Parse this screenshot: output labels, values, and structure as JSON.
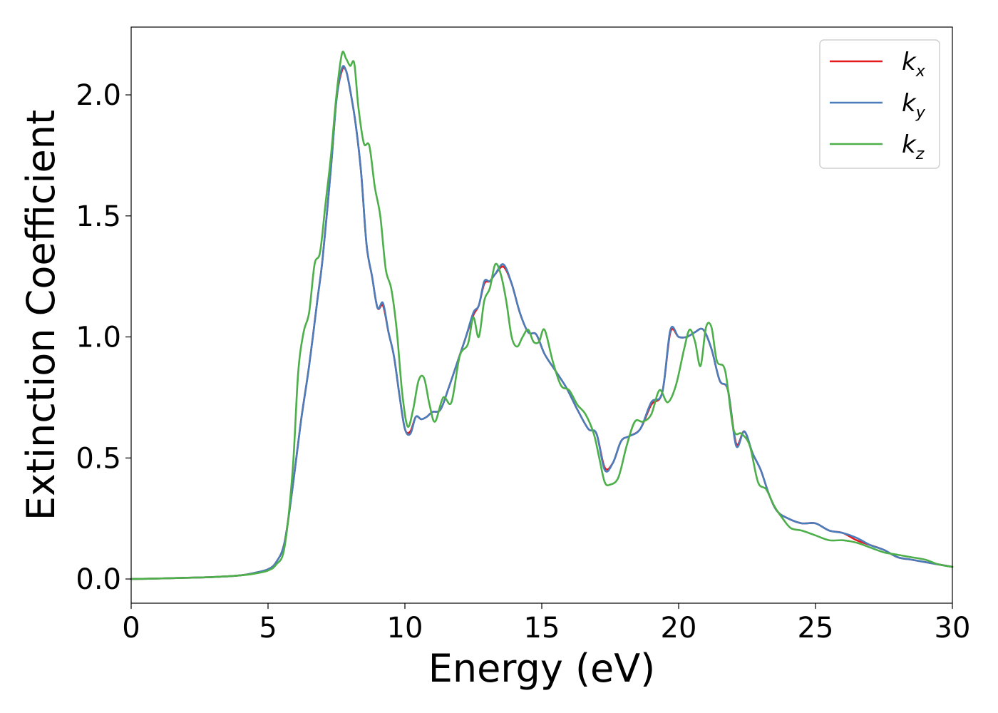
{
  "chart_data": {
    "type": "line",
    "xlabel": "Energy (eV)",
    "ylabel": "Extinction Coefficient",
    "xlim": [
      0,
      30
    ],
    "ylim": [
      -0.1,
      2.28
    ],
    "xticks": [
      "0",
      "5",
      "10",
      "15",
      "20",
      "25",
      "30"
    ],
    "yticks": [
      "0.0",
      "0.5",
      "1.0",
      "1.5",
      "2.0"
    ],
    "grid": false,
    "legend_position": "top-right",
    "series": [
      {
        "name": "k",
        "subscript": "x",
        "color": "#e41a1c",
        "x": [
          0,
          1,
          2,
          3,
          4,
          4.5,
          5,
          5.3,
          5.6,
          5.9,
          6.2,
          6.5,
          6.8,
          7.0,
          7.3,
          7.5,
          7.7,
          7.85,
          8.0,
          8.2,
          8.4,
          8.6,
          8.8,
          9.0,
          9.2,
          9.4,
          9.6,
          9.8,
          10.0,
          10.2,
          10.4,
          10.6,
          10.8,
          11.0,
          11.3,
          11.6,
          11.9,
          12.2,
          12.5,
          12.7,
          12.9,
          13.1,
          13.3,
          13.6,
          13.9,
          14.2,
          14.5,
          14.8,
          15.1,
          15.5,
          15.9,
          16.3,
          16.7,
          17.0,
          17.3,
          17.6,
          17.9,
          18.2,
          18.6,
          19.0,
          19.4,
          19.7,
          20.0,
          20.3,
          20.6,
          20.9,
          21.2,
          21.5,
          21.8,
          22.1,
          22.4,
          22.7,
          23.0,
          23.3,
          23.6,
          24.0,
          24.5,
          25.0,
          25.5,
          26.0,
          26.5,
          27.0,
          27.5,
          28.0,
          28.5,
          29.0,
          29.5,
          30.0
        ],
        "values": [
          0.0,
          0.002,
          0.005,
          0.008,
          0.015,
          0.025,
          0.04,
          0.07,
          0.15,
          0.38,
          0.65,
          0.88,
          1.15,
          1.33,
          1.7,
          1.98,
          2.1,
          2.1,
          2.02,
          1.88,
          1.68,
          1.38,
          1.25,
          1.12,
          1.13,
          1.02,
          0.92,
          0.76,
          0.62,
          0.61,
          0.67,
          0.66,
          0.67,
          0.69,
          0.7,
          0.79,
          0.89,
          0.99,
          1.09,
          1.13,
          1.22,
          1.23,
          1.26,
          1.29,
          1.22,
          1.1,
          1.02,
          1.01,
          0.93,
          0.86,
          0.79,
          0.7,
          0.62,
          0.6,
          0.46,
          0.48,
          0.57,
          0.59,
          0.62,
          0.72,
          0.77,
          1.02,
          1.0,
          1.0,
          1.02,
          1.03,
          0.95,
          0.82,
          0.78,
          0.56,
          0.61,
          0.52,
          0.45,
          0.35,
          0.28,
          0.25,
          0.23,
          0.23,
          0.2,
          0.19,
          0.16,
          0.14,
          0.12,
          0.09,
          0.08,
          0.07,
          0.06,
          0.05
        ]
      },
      {
        "name": "k",
        "subscript": "y",
        "color": "#4a7dbb",
        "x": [
          0,
          1,
          2,
          3,
          4,
          4.5,
          5,
          5.3,
          5.6,
          5.9,
          6.2,
          6.5,
          6.8,
          7.0,
          7.3,
          7.5,
          7.7,
          7.85,
          8.0,
          8.2,
          8.4,
          8.6,
          8.8,
          9.0,
          9.2,
          9.4,
          9.6,
          9.8,
          10.0,
          10.2,
          10.4,
          10.6,
          10.8,
          11.0,
          11.3,
          11.6,
          11.9,
          12.2,
          12.5,
          12.7,
          12.9,
          13.1,
          13.3,
          13.6,
          13.9,
          14.2,
          14.5,
          14.8,
          15.1,
          15.5,
          15.9,
          16.3,
          16.7,
          17.0,
          17.3,
          17.6,
          17.9,
          18.2,
          18.6,
          19.0,
          19.4,
          19.7,
          20.0,
          20.3,
          20.6,
          20.9,
          21.2,
          21.5,
          21.8,
          22.1,
          22.4,
          22.7,
          23.0,
          23.3,
          23.6,
          24.0,
          24.5,
          25.0,
          25.5,
          26.0,
          26.5,
          27.0,
          27.5,
          28.0,
          28.5,
          29.0,
          29.5,
          30.0
        ],
        "values": [
          0.0,
          0.002,
          0.005,
          0.008,
          0.015,
          0.025,
          0.04,
          0.07,
          0.15,
          0.38,
          0.65,
          0.88,
          1.15,
          1.33,
          1.7,
          1.98,
          2.11,
          2.1,
          2.02,
          1.88,
          1.68,
          1.38,
          1.25,
          1.12,
          1.14,
          1.02,
          0.92,
          0.76,
          0.62,
          0.6,
          0.67,
          0.66,
          0.67,
          0.69,
          0.7,
          0.79,
          0.89,
          0.99,
          1.1,
          1.13,
          1.23,
          1.23,
          1.26,
          1.3,
          1.22,
          1.1,
          1.02,
          1.01,
          0.93,
          0.86,
          0.79,
          0.7,
          0.62,
          0.6,
          0.45,
          0.48,
          0.57,
          0.59,
          0.62,
          0.73,
          0.77,
          1.03,
          1.0,
          1.0,
          1.02,
          1.03,
          0.95,
          0.82,
          0.78,
          0.55,
          0.61,
          0.52,
          0.45,
          0.35,
          0.28,
          0.25,
          0.23,
          0.23,
          0.2,
          0.19,
          0.17,
          0.14,
          0.12,
          0.09,
          0.08,
          0.07,
          0.06,
          0.05
        ]
      },
      {
        "name": "k",
        "subscript": "z",
        "color": "#4daf4a",
        "x": [
          0,
          1,
          2,
          3,
          4,
          4.5,
          5,
          5.3,
          5.6,
          5.9,
          6.1,
          6.3,
          6.5,
          6.7,
          6.9,
          7.1,
          7.3,
          7.5,
          7.7,
          7.85,
          8.0,
          8.15,
          8.3,
          8.5,
          8.7,
          8.9,
          9.1,
          9.3,
          9.5,
          9.7,
          9.9,
          10.1,
          10.3,
          10.5,
          10.7,
          10.9,
          11.1,
          11.4,
          11.7,
          12.0,
          12.3,
          12.5,
          12.7,
          12.9,
          13.1,
          13.3,
          13.5,
          13.7,
          13.9,
          14.1,
          14.3,
          14.5,
          14.7,
          14.9,
          15.1,
          15.4,
          15.7,
          16.0,
          16.3,
          16.6,
          16.9,
          17.1,
          17.3,
          17.5,
          17.8,
          18.1,
          18.4,
          18.7,
          19.0,
          19.3,
          19.6,
          19.9,
          20.2,
          20.4,
          20.6,
          20.8,
          21.0,
          21.2,
          21.4,
          21.7,
          22.0,
          22.3,
          22.6,
          22.9,
          23.2,
          23.5,
          23.8,
          24.1,
          24.5,
          25.0,
          25.5,
          26.0,
          26.5,
          27.0,
          27.5,
          28.0,
          28.5,
          29.0,
          29.5,
          30.0
        ],
        "values": [
          0.0,
          0.002,
          0.005,
          0.008,
          0.015,
          0.022,
          0.035,
          0.06,
          0.13,
          0.45,
          0.85,
          1.02,
          1.1,
          1.3,
          1.35,
          1.55,
          1.75,
          2.0,
          2.17,
          2.15,
          2.12,
          2.13,
          1.95,
          1.8,
          1.79,
          1.62,
          1.5,
          1.28,
          1.2,
          1.03,
          0.77,
          0.63,
          0.7,
          0.82,
          0.83,
          0.72,
          0.65,
          0.75,
          0.73,
          0.92,
          0.97,
          1.08,
          1.0,
          1.15,
          1.2,
          1.3,
          1.26,
          1.15,
          1.0,
          0.96,
          1.0,
          1.03,
          0.98,
          0.98,
          1.03,
          0.9,
          0.8,
          0.78,
          0.72,
          0.68,
          0.6,
          0.5,
          0.4,
          0.39,
          0.42,
          0.55,
          0.65,
          0.65,
          0.68,
          0.78,
          0.73,
          0.8,
          0.95,
          1.03,
          0.98,
          0.88,
          1.04,
          1.04,
          0.9,
          0.86,
          0.62,
          0.6,
          0.55,
          0.4,
          0.37,
          0.3,
          0.25,
          0.21,
          0.2,
          0.18,
          0.16,
          0.16,
          0.15,
          0.13,
          0.11,
          0.1,
          0.09,
          0.08,
          0.06,
          0.05
        ]
      }
    ]
  }
}
